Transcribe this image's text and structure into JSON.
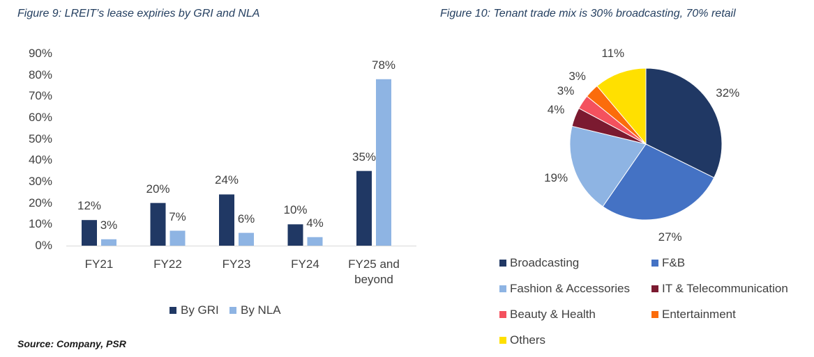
{
  "colors": {
    "title": "#243f60",
    "text": "#404040",
    "axis": "#d9d9d9",
    "slice_border": "#ffffff"
  },
  "chart_data": [
    {
      "type": "bar",
      "title": "Figure 9: LREIT’s lease expiries by GRI and NLA",
      "categories": [
        "FY21",
        "FY22",
        "FY23",
        "FY24",
        "FY25 and beyond"
      ],
      "series": [
        {
          "name": "By GRI",
          "color": "#203864",
          "values": [
            12,
            20,
            24,
            10,
            35
          ],
          "data_labels": [
            "12%",
            "20%",
            "24%",
            "10%",
            "35%"
          ]
        },
        {
          "name": "By NLA",
          "color": "#8eb4e3",
          "values": [
            3,
            7,
            6,
            4,
            78
          ],
          "data_labels": [
            "3%",
            "7%",
            "6%",
            "4%",
            "78%"
          ]
        }
      ],
      "y_ticks": [
        "0%",
        "10%",
        "20%",
        "30%",
        "40%",
        "50%",
        "60%",
        "70%",
        "80%",
        "90%"
      ],
      "ylim": [
        0,
        90
      ],
      "grid": false,
      "legend": "bottom",
      "source": "Source: Company, PSR"
    },
    {
      "type": "pie",
      "title": "Figure 10: Tenant trade mix is 30% broadcasting, 70% retail",
      "slices": [
        {
          "label": "Broadcasting",
          "value": 32,
          "data_label": "32%",
          "color": "#203864"
        },
        {
          "label": "F&B",
          "value": 27,
          "data_label": "27%",
          "color": "#4472c4"
        },
        {
          "label": "Fashion & Accessories",
          "value": 19,
          "data_label": "19%",
          "color": "#8eb4e3"
        },
        {
          "label": "IT & Telecommunication",
          "value": 4,
          "data_label": "4%",
          "color": "#7b1a30"
        },
        {
          "label": "Beauty & Health",
          "value": 3,
          "data_label": "3%",
          "color": "#f4515e"
        },
        {
          "label": "Entertainment",
          "value": 3,
          "data_label": "3%",
          "color": "#fb6c0b"
        },
        {
          "label": "Others",
          "value": 11,
          "data_label": "11%",
          "color": "#ffe000"
        }
      ],
      "legend": "bottom"
    }
  ]
}
